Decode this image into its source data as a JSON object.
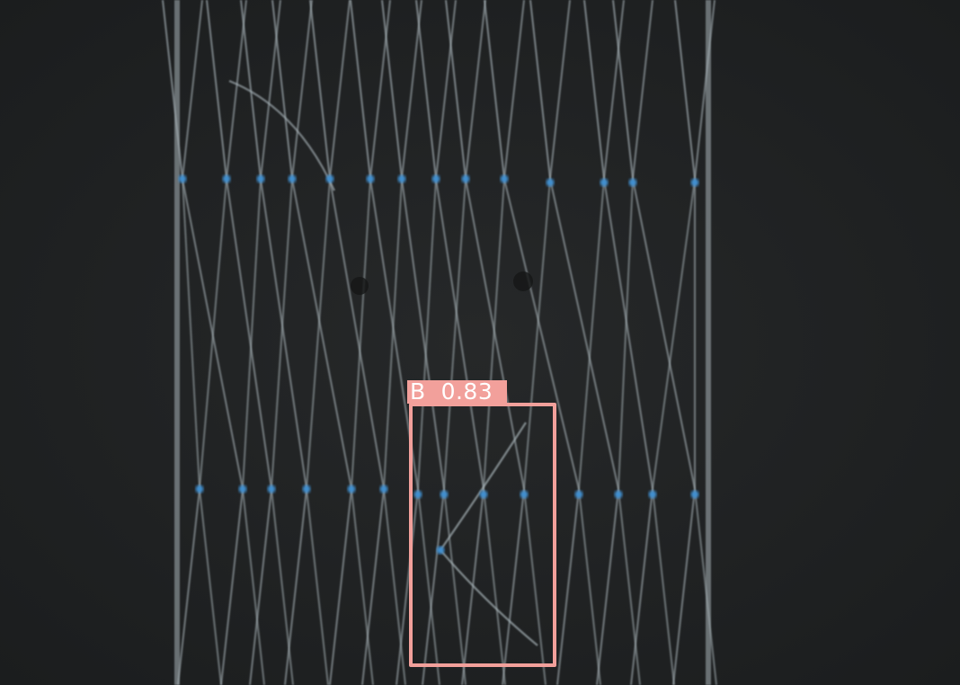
{
  "detections": [
    {
      "class_label": "B",
      "confidence": "0.83",
      "box_color": "#f2a09b"
    }
  ],
  "scene": {
    "background_color": "#1f2122",
    "filament_color": "#a7b3b8",
    "marker_color": "#3f8fd0",
    "filament_count_per_row": 14,
    "marker_rows": 2
  }
}
